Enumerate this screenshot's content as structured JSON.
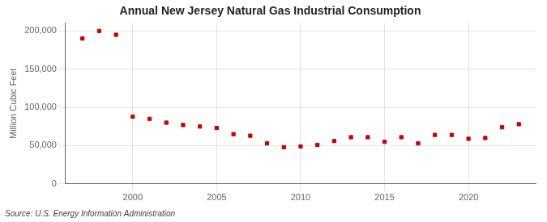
{
  "chart_data": {
    "type": "scatter",
    "title": "Annual New Jersey Natural Gas Industrial Consumption",
    "y_label": "Million Cubic Feet",
    "annotations": [
      "Source: U.S. Energy Information Administration"
    ],
    "x": [
      1997,
      1998,
      1999,
      2000,
      2001,
      2002,
      2003,
      2004,
      2005,
      2006,
      2007,
      2008,
      2009,
      2010,
      2011,
      2012,
      2013,
      2014,
      2015,
      2016,
      2017,
      2018,
      2019,
      2020,
      2021,
      2022,
      2023
    ],
    "values": [
      190000,
      200000,
      195000,
      88000,
      85000,
      80000,
      77000,
      75000,
      73000,
      65000,
      63000,
      53000,
      48000,
      49000,
      51000,
      56000,
      61000,
      61000,
      55000,
      61000,
      53000,
      64000,
      64000,
      59000,
      60000,
      74000,
      78000
    ],
    "color": "#cc0000",
    "marker": "square",
    "xlim": [
      1996,
      2024
    ],
    "xticks": [
      2000,
      2005,
      2010,
      2015,
      2020
    ],
    "ylim": [
      0,
      210000
    ],
    "yticks": [
      0,
      {
        "value": 50000,
        "label": "50,000"
      },
      {
        "value": 100000,
        "label": "100,000"
      },
      {
        "value": 150000,
        "label": "150,000"
      },
      {
        "value": 200000,
        "label": "200,000"
      }
    ],
    "grid": true
  }
}
